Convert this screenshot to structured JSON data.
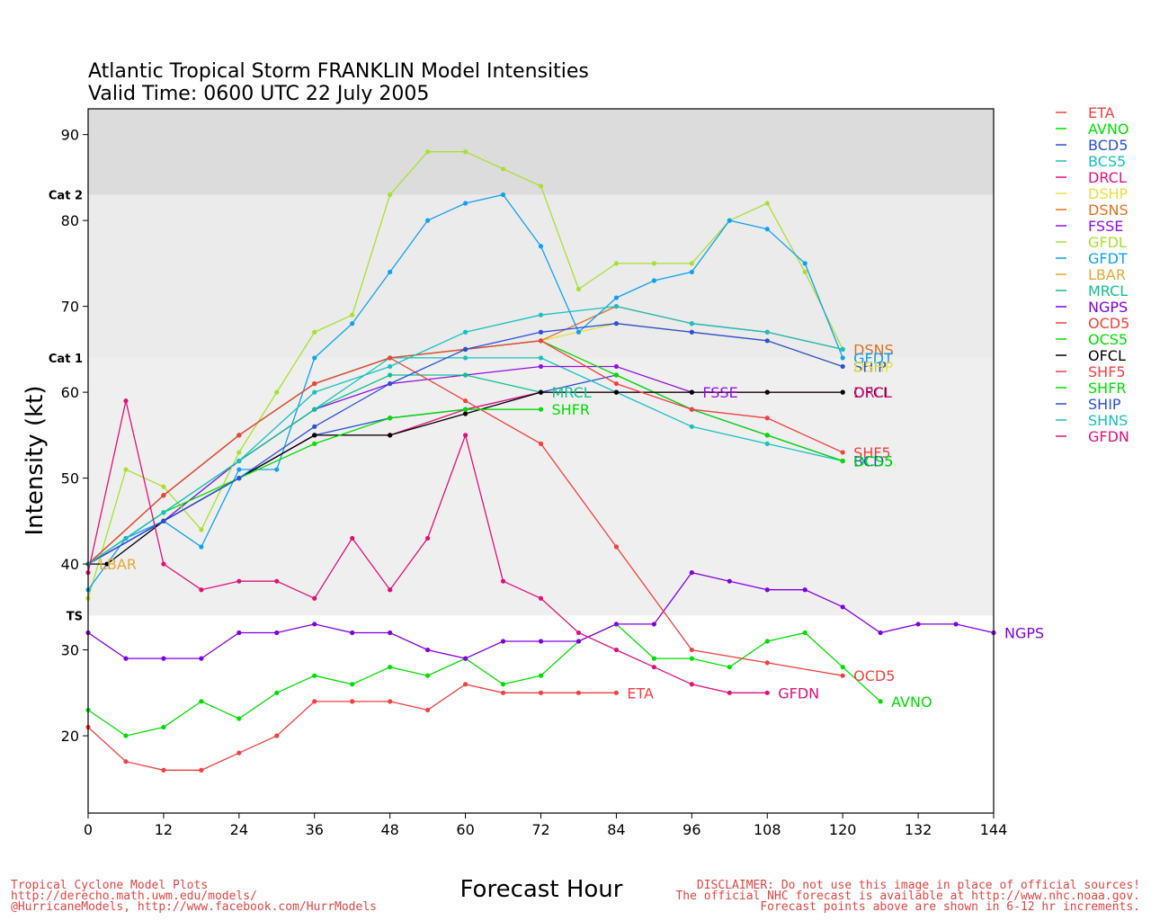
{
  "title_line1": "Atlantic Tropical Storm FRANKLIN Model Intensities",
  "title_line2": "Valid Time: 0600 UTC 22 July 2005",
  "footer_left": [
    "Tropical Cyclone Model Plots",
    "http://derecho.math.uwm.edu/models/",
    "@HurricaneModels, http://www.facebook.com/HurrModels"
  ],
  "footer_right": [
    "DISCLAIMER: Do not use this image in place of official sources!",
    "The official NHC forecast is available at http://www.nhc.noaa.gov.",
    "Forecast points above are shown in 6-12 hr increments."
  ],
  "chart_data": {
    "type": "line",
    "xlabel": "Forecast Hour",
    "ylabel": "Intensity (kt)",
    "xlim": [
      0,
      144
    ],
    "ylim": [
      11,
      93
    ],
    "xticks": [
      0,
      12,
      24,
      36,
      48,
      60,
      72,
      84,
      96,
      108,
      120,
      132,
      144
    ],
    "yticks": [
      20,
      30,
      40,
      50,
      60,
      70,
      80,
      90
    ],
    "grid": false,
    "legend_position": "right",
    "bands": [
      {
        "label": "TS",
        "from": 34,
        "to": 64,
        "color": "#efefef"
      },
      {
        "label": "Cat 1",
        "from": 64,
        "to": 83,
        "color": "#ebebeb"
      },
      {
        "label": "Cat 2",
        "from": 83,
        "to": 93,
        "color": "#dcdcdc"
      }
    ],
    "series": [
      {
        "name": "ETA",
        "color": "#f04040",
        "end_label": "ETA",
        "points": [
          [
            0,
            21
          ],
          [
            6,
            17
          ],
          [
            12,
            16
          ],
          [
            18,
            16
          ],
          [
            24,
            18
          ],
          [
            30,
            20
          ],
          [
            36,
            24
          ],
          [
            42,
            24
          ],
          [
            48,
            24
          ],
          [
            54,
            23
          ],
          [
            60,
            26
          ],
          [
            66,
            25
          ],
          [
            72,
            25
          ],
          [
            78,
            25
          ],
          [
            84,
            25
          ]
        ]
      },
      {
        "name": "AVNO",
        "color": "#00dd00",
        "end_label": "AVNO",
        "points": [
          [
            0,
            23
          ],
          [
            6,
            20
          ],
          [
            12,
            21
          ],
          [
            18,
            24
          ],
          [
            24,
            22
          ],
          [
            30,
            25
          ],
          [
            36,
            27
          ],
          [
            42,
            26
          ],
          [
            48,
            28
          ],
          [
            54,
            27
          ],
          [
            60,
            29
          ],
          [
            66,
            26
          ],
          [
            72,
            27
          ],
          [
            78,
            31
          ],
          [
            84,
            33
          ],
          [
            90,
            29
          ],
          [
            96,
            29
          ],
          [
            102,
            28
          ],
          [
            108,
            31
          ],
          [
            114,
            32
          ],
          [
            120,
            28
          ],
          [
            126,
            24
          ]
        ]
      },
      {
        "name": "BCD5",
        "color": "#2b4fd8",
        "end_label": "",
        "points": [
          [
            0,
            40
          ],
          [
            12,
            45
          ],
          [
            24,
            50
          ],
          [
            36,
            55
          ],
          [
            48,
            57
          ],
          [
            60,
            58
          ],
          [
            72,
            60
          ],
          [
            84,
            62
          ],
          [
            96,
            58
          ],
          [
            108,
            55
          ],
          [
            120,
            52
          ]
        ]
      },
      {
        "name": "BCS5",
        "color": "#18c0c0",
        "end_label": "",
        "points": [
          [
            0,
            40
          ],
          [
            12,
            45
          ],
          [
            24,
            52
          ],
          [
            36,
            58
          ],
          [
            48,
            64
          ],
          [
            60,
            64
          ],
          [
            72,
            64
          ],
          [
            84,
            60
          ],
          [
            96,
            56
          ],
          [
            108,
            54
          ],
          [
            120,
            52
          ]
        ]
      },
      {
        "name": "DRCL",
        "color": "#e0107a",
        "end_label": "",
        "points": [
          [
            0,
            40
          ],
          [
            12,
            45
          ],
          [
            24,
            50
          ],
          [
            36,
            55
          ],
          [
            48,
            55
          ],
          [
            60,
            58
          ],
          [
            72,
            60
          ],
          [
            84,
            60
          ],
          [
            96,
            60
          ],
          [
            108,
            60
          ],
          [
            120,
            60
          ]
        ]
      },
      {
        "name": "DSHP",
        "color": "#e8e040",
        "end_label": "",
        "points": [
          [
            0,
            40
          ],
          [
            12,
            48
          ],
          [
            24,
            55
          ],
          [
            36,
            61
          ],
          [
            48,
            64
          ],
          [
            60,
            65
          ],
          [
            72,
            66
          ],
          [
            84,
            68
          ],
          [
            96,
            67
          ],
          [
            108,
            66
          ],
          [
            120,
            63
          ]
        ]
      },
      {
        "name": "DSNS",
        "color": "#e07020",
        "end_label": "",
        "points": [
          [
            0,
            40
          ],
          [
            12,
            48
          ],
          [
            24,
            55
          ],
          [
            36,
            61
          ],
          [
            48,
            64
          ],
          [
            60,
            65
          ],
          [
            72,
            66
          ],
          [
            84,
            70
          ],
          [
            96,
            68
          ],
          [
            108,
            67
          ],
          [
            120,
            65
          ]
        ]
      },
      {
        "name": "FSSE",
        "color": "#9010e0",
        "end_label": "FSSE",
        "points": [
          [
            0,
            40
          ],
          [
            12,
            45
          ],
          [
            24,
            52
          ],
          [
            36,
            58
          ],
          [
            48,
            61
          ],
          [
            60,
            62
          ],
          [
            72,
            63
          ],
          [
            84,
            63
          ],
          [
            96,
            60
          ]
        ]
      },
      {
        "name": "GFDL",
        "color": "#a8e030",
        "end_label": "",
        "points": [
          [
            0,
            36
          ],
          [
            6,
            51
          ],
          [
            12,
            49
          ],
          [
            18,
            44
          ],
          [
            24,
            53
          ],
          [
            30,
            60
          ],
          [
            36,
            67
          ],
          [
            42,
            69
          ],
          [
            48,
            83
          ],
          [
            54,
            88
          ],
          [
            60,
            88
          ],
          [
            66,
            86
          ],
          [
            72,
            84
          ],
          [
            78,
            72
          ],
          [
            84,
            75
          ],
          [
            90,
            75
          ],
          [
            96,
            75
          ],
          [
            102,
            80
          ],
          [
            108,
            82
          ],
          [
            114,
            74
          ],
          [
            120,
            65
          ]
        ]
      },
      {
        "name": "GFDT",
        "color": "#10a0f0",
        "end_label": "",
        "points": [
          [
            0,
            37
          ],
          [
            6,
            43
          ],
          [
            12,
            45
          ],
          [
            18,
            42
          ],
          [
            24,
            51
          ],
          [
            30,
            51
          ],
          [
            36,
            64
          ],
          [
            42,
            68
          ],
          [
            48,
            74
          ],
          [
            54,
            80
          ],
          [
            60,
            82
          ],
          [
            66,
            83
          ],
          [
            72,
            77
          ],
          [
            78,
            67
          ],
          [
            84,
            71
          ],
          [
            90,
            73
          ],
          [
            96,
            74
          ],
          [
            102,
            80
          ],
          [
            108,
            79
          ],
          [
            114,
            75
          ],
          [
            120,
            64
          ]
        ]
      },
      {
        "name": "LBAR",
        "color": "#e8a830",
        "end_label": "LBAR",
        "points": [
          [
            0,
            40
          ]
        ]
      },
      {
        "name": "MRCL",
        "color": "#10c090",
        "end_label": "MRCL",
        "points": [
          [
            0,
            40
          ],
          [
            12,
            46
          ],
          [
            24,
            52
          ],
          [
            36,
            58
          ],
          [
            48,
            62
          ],
          [
            60,
            62
          ],
          [
            72,
            60
          ]
        ]
      },
      {
        "name": "NGPS",
        "color": "#8000e0",
        "end_label": "NGPS",
        "points": [
          [
            0,
            32
          ],
          [
            6,
            29
          ],
          [
            12,
            29
          ],
          [
            18,
            29
          ],
          [
            24,
            32
          ],
          [
            30,
            32
          ],
          [
            36,
            33
          ],
          [
            42,
            32
          ],
          [
            48,
            32
          ],
          [
            54,
            30
          ],
          [
            60,
            29
          ],
          [
            66,
            31
          ],
          [
            72,
            31
          ],
          [
            78,
            31
          ],
          [
            84,
            33
          ],
          [
            90,
            33
          ],
          [
            96,
            39
          ],
          [
            102,
            38
          ],
          [
            108,
            37
          ],
          [
            114,
            37
          ],
          [
            120,
            35
          ],
          [
            126,
            32
          ],
          [
            132,
            33
          ],
          [
            138,
            33
          ],
          [
            144,
            32
          ]
        ]
      },
      {
        "name": "OCD5",
        "color": "#f04040",
        "end_label": "OCD5",
        "points": [
          [
            0,
            40
          ],
          [
            12,
            48
          ],
          [
            24,
            55
          ],
          [
            36,
            61
          ],
          [
            48,
            64
          ],
          [
            60,
            59
          ],
          [
            72,
            54
          ],
          [
            84,
            42
          ],
          [
            96,
            30
          ],
          [
            108,
            28.5
          ],
          [
            120,
            27
          ]
        ]
      },
      {
        "name": "OCS5",
        "color": "#00dd00",
        "end_label": "",
        "points": [
          [
            0,
            40
          ],
          [
            12,
            48
          ],
          [
            24,
            55
          ],
          [
            36,
            61
          ],
          [
            48,
            64
          ],
          [
            60,
            65
          ],
          [
            72,
            66
          ],
          [
            84,
            62
          ],
          [
            96,
            58
          ],
          [
            108,
            55
          ],
          [
            120,
            52
          ]
        ]
      },
      {
        "name": "OFCL",
        "color": "#000000",
        "end_label": "OFCL",
        "points": [
          [
            0,
            40
          ],
          [
            3,
            40
          ],
          [
            12,
            45
          ],
          [
            24,
            50
          ],
          [
            36,
            55
          ],
          [
            48,
            55
          ],
          [
            60,
            57.5
          ],
          [
            72,
            60
          ],
          [
            84,
            60
          ],
          [
            96,
            60
          ],
          [
            108,
            60
          ],
          [
            120,
            60
          ]
        ]
      },
      {
        "name": "SHF5",
        "color": "#f04040",
        "end_label": "SHF5",
        "points": [
          [
            0,
            40
          ],
          [
            12,
            48
          ],
          [
            24,
            55
          ],
          [
            36,
            61
          ],
          [
            48,
            64
          ],
          [
            60,
            65
          ],
          [
            72,
            66
          ],
          [
            84,
            61
          ],
          [
            96,
            58
          ],
          [
            108,
            57
          ],
          [
            120,
            53
          ]
        ]
      },
      {
        "name": "SHFR",
        "color": "#00dd00",
        "end_label": "SHFR",
        "points": [
          [
            0,
            40
          ],
          [
            12,
            46
          ],
          [
            24,
            50
          ],
          [
            36,
            54
          ],
          [
            48,
            57
          ],
          [
            60,
            58
          ],
          [
            72,
            58
          ]
        ]
      },
      {
        "name": "SHIP",
        "color": "#2b4fd8",
        "end_label": "SHIP",
        "points": [
          [
            0,
            40
          ],
          [
            12,
            45
          ],
          [
            24,
            50
          ],
          [
            36,
            56
          ],
          [
            48,
            61
          ],
          [
            60,
            65
          ],
          [
            72,
            67
          ],
          [
            84,
            68
          ],
          [
            96,
            67
          ],
          [
            108,
            66
          ],
          [
            120,
            63
          ]
        ]
      },
      {
        "name": "SHNS",
        "color": "#18c0c0",
        "end_label": "",
        "points": [
          [
            0,
            40
          ],
          [
            12,
            46
          ],
          [
            24,
            52
          ],
          [
            36,
            60
          ],
          [
            48,
            63
          ],
          [
            60,
            67
          ],
          [
            72,
            69
          ],
          [
            84,
            70
          ],
          [
            96,
            68
          ],
          [
            108,
            67
          ],
          [
            120,
            65
          ]
        ]
      },
      {
        "name": "GFDN",
        "color": "#e0107a",
        "end_label": "GFDN",
        "points": [
          [
            0,
            39
          ],
          [
            6,
            59
          ],
          [
            12,
            40
          ],
          [
            18,
            37
          ],
          [
            24,
            38
          ],
          [
            30,
            38
          ],
          [
            36,
            36
          ],
          [
            42,
            43
          ],
          [
            48,
            37
          ],
          [
            54,
            43
          ],
          [
            60,
            55
          ],
          [
            66,
            38
          ],
          [
            72,
            36
          ],
          [
            78,
            32
          ],
          [
            84,
            30
          ],
          [
            90,
            28
          ],
          [
            96,
            26
          ],
          [
            102,
            25
          ],
          [
            108,
            25
          ]
        ]
      }
    ],
    "extra_end_labels": [
      {
        "text": "DSNS",
        "color": "#e07020",
        "x": 120,
        "y": 65
      },
      {
        "text": "GFDT",
        "color": "#10a0f0",
        "x": 120,
        "y": 64
      },
      {
        "text": "DSHP",
        "color": "#e8e040",
        "x": 120,
        "y": 63
      },
      {
        "text": "DRCL",
        "color": "#e0107a",
        "x": 120,
        "y": 60
      },
      {
        "text": "BCD5",
        "color": "#2b4fd8",
        "x": 120,
        "y": 52
      },
      {
        "text": "OCS5",
        "color": "#00dd00",
        "x": 120,
        "y": 52
      }
    ]
  }
}
